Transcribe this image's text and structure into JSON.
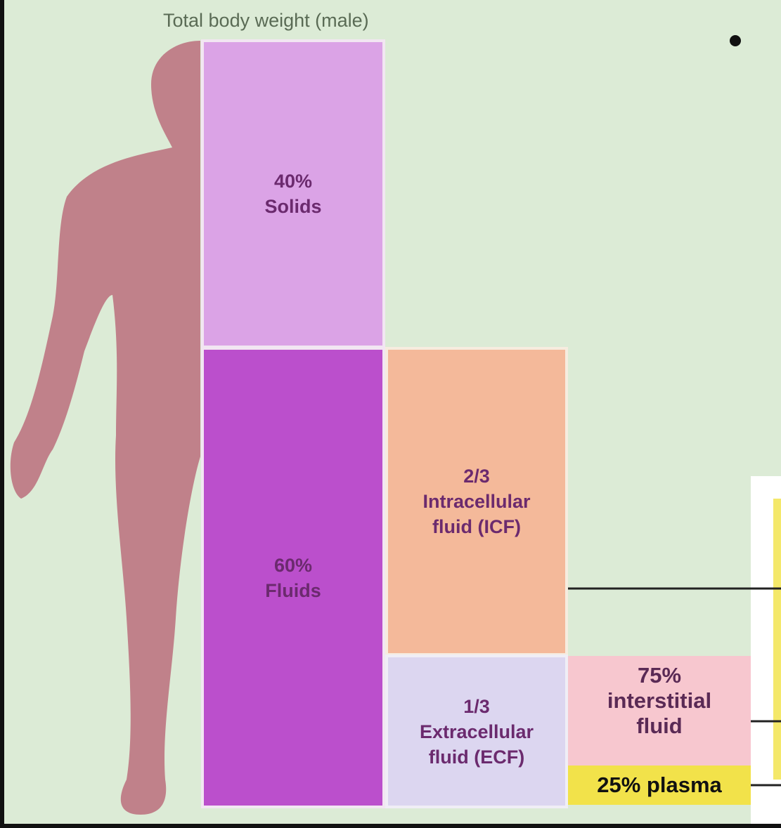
{
  "title": "Total body weight (male)",
  "blocks": {
    "solids": {
      "lines": [
        "40%",
        "Solids"
      ]
    },
    "fluids": {
      "lines": [
        "60%",
        "Fluids"
      ]
    },
    "icf": {
      "lines": [
        "2/3",
        "Intracellular",
        "fluid (ICF)"
      ]
    },
    "ecf": {
      "lines": [
        "1/3",
        "Extracellular",
        "fluid (ECF)"
      ]
    },
    "interstitial": {
      "lines": [
        "75%",
        "interstitial",
        "fluid"
      ]
    },
    "plasma": {
      "lines": [
        "25% plasma"
      ]
    }
  }
}
